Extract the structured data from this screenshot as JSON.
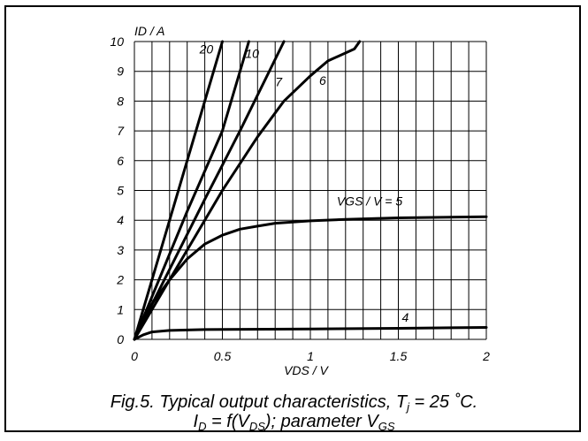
{
  "chart_data": {
    "type": "line",
    "title": "",
    "xlabel": "VDS / V",
    "ylabel": "ID / A",
    "xlim": [
      0,
      2
    ],
    "ylim": [
      0,
      10
    ],
    "x_ticks": [
      "0",
      "0.5",
      "1",
      "1.5",
      "2"
    ],
    "x_tick_values": [
      0,
      0.5,
      1,
      1.5,
      2
    ],
    "y_ticks": [
      "0",
      "1",
      "2",
      "3",
      "4",
      "5",
      "6",
      "7",
      "8",
      "9",
      "10"
    ],
    "y_tick_values": [
      0,
      1,
      2,
      3,
      4,
      5,
      6,
      7,
      8,
      9,
      10
    ],
    "grid": true,
    "series": [
      {
        "name": "20",
        "label_at": [
          0.37,
          9.6
        ],
        "points": [
          [
            0,
            0
          ],
          [
            0.5,
            10
          ]
        ]
      },
      {
        "name": "10",
        "label_at": [
          0.63,
          9.45
        ],
        "points": [
          [
            0,
            0
          ],
          [
            0.3,
            4.3
          ],
          [
            0.5,
            7.0
          ],
          [
            0.65,
            10
          ]
        ]
      },
      {
        "name": "7",
        "label_at": [
          0.8,
          8.5
        ],
        "points": [
          [
            0,
            0
          ],
          [
            0.4,
            4.7
          ],
          [
            0.6,
            7.0
          ],
          [
            0.85,
            10
          ]
        ]
      },
      {
        "name": "6",
        "label_at": [
          1.05,
          8.55
        ],
        "points": [
          [
            0,
            0
          ],
          [
            0.3,
            3.0
          ],
          [
            0.5,
            5.0
          ],
          [
            0.7,
            6.8
          ],
          [
            0.85,
            8.0
          ],
          [
            1.0,
            8.85
          ],
          [
            1.1,
            9.35
          ],
          [
            1.25,
            9.75
          ],
          [
            1.28,
            10
          ]
        ]
      },
      {
        "name": "VGS / V = 5",
        "label_at": [
          1.15,
          4.5
        ],
        "points": [
          [
            0,
            0
          ],
          [
            0.1,
            1.2
          ],
          [
            0.2,
            2.0
          ],
          [
            0.3,
            2.7
          ],
          [
            0.4,
            3.2
          ],
          [
            0.5,
            3.5
          ],
          [
            0.6,
            3.7
          ],
          [
            0.7,
            3.8
          ],
          [
            0.8,
            3.9
          ],
          [
            1.0,
            3.98
          ],
          [
            1.2,
            4.03
          ],
          [
            1.5,
            4.08
          ],
          [
            2.0,
            4.12
          ]
        ]
      },
      {
        "name": "4",
        "label_at": [
          1.52,
          0.6
        ],
        "points": [
          [
            0,
            0
          ],
          [
            0.05,
            0.15
          ],
          [
            0.1,
            0.25
          ],
          [
            0.2,
            0.3
          ],
          [
            0.4,
            0.33
          ],
          [
            1.0,
            0.35
          ],
          [
            1.5,
            0.37
          ],
          [
            2.0,
            0.4
          ]
        ]
      }
    ]
  },
  "caption": {
    "line1_prefix": "Fig.5.  Typical output characteristics, T",
    "line1_sub": "j",
    "line1_suffix": " = 25 ˚C.",
    "line2_a": "I",
    "line2_sub1": "D",
    "line2_b": " = f(V",
    "line2_sub2": "DS",
    "line2_c": "); parameter V",
    "line2_sub3": "GS"
  }
}
